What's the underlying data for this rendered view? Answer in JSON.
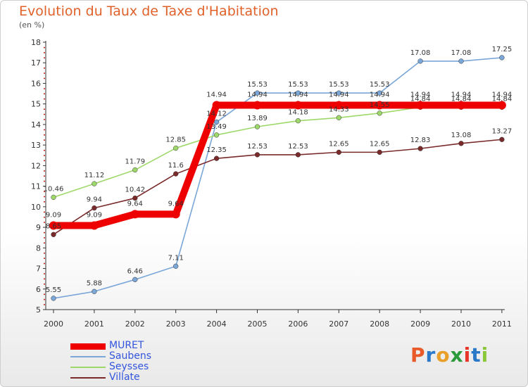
{
  "title": "Evolution du Taux de Taxe d'Habitation",
  "subtitle": "(en %)",
  "logo": {
    "text": "Proxiti",
    "colors": [
      "#e85a2a",
      "#2a78c8",
      "#e8a02a",
      "#2a9a3a",
      "#e8342a",
      "#2a78c8",
      "#8ac83a"
    ]
  },
  "chart_data": {
    "type": "line",
    "x": [
      "2000",
      "2001",
      "2002",
      "2003",
      "2004",
      "2005",
      "2006",
      "2007",
      "2008",
      "2009",
      "2010",
      "2011"
    ],
    "yticks": [
      "5",
      "6",
      "7",
      "8",
      "9",
      "10",
      "11",
      "12",
      "13",
      "14",
      "15",
      "16",
      "17",
      "18"
    ],
    "ylim": [
      5,
      18
    ],
    "grid": false,
    "legend_position": "bottom-left",
    "series": [
      {
        "name": "MURET",
        "color": "#ee0000",
        "values": [
          9.09,
          9.09,
          9.64,
          9.64,
          14.94,
          14.94,
          14.94,
          14.94,
          14.94,
          14.94,
          14.94,
          14.94
        ],
        "labels": [
          "9.09",
          "9.09",
          "9.64",
          "9.64",
          "14.94",
          "14.94",
          "14.94",
          "14.94",
          "14.94",
          "14.94",
          "14.94",
          "14.94"
        ]
      },
      {
        "name": "Saubens",
        "color": "#7aa6d8",
        "values": [
          5.55,
          5.88,
          6.46,
          7.11,
          14.12,
          15.53,
          15.53,
          15.53,
          15.53,
          17.08,
          17.08,
          17.25
        ],
        "labels": [
          "5.55",
          "5.88",
          "6.46",
          "7.11",
          "14.12",
          "15.53",
          "15.53",
          "15.53",
          "15.53",
          "17.08",
          "17.08",
          "17.25"
        ]
      },
      {
        "name": "Seysses",
        "color": "#9ed86a",
        "values": [
          10.46,
          11.12,
          11.79,
          12.85,
          13.49,
          13.89,
          14.18,
          14.33,
          14.55,
          14.84,
          14.84,
          14.84
        ],
        "labels": [
          "10.46",
          "11.12",
          "11.79",
          "12.85",
          "13.49",
          "13.89",
          "14.18",
          "14.33",
          "14.55",
          "14.84",
          "14.84",
          "14.84"
        ]
      },
      {
        "name": "Villate",
        "color": "#7a2a2a",
        "values": [
          8.65,
          9.94,
          10.42,
          11.6,
          12.35,
          12.53,
          12.53,
          12.65,
          12.65,
          12.83,
          13.08,
          13.27
        ],
        "labels": [
          "8.65",
          "9.94",
          "10.42",
          "11.6",
          "12.35",
          "12.53",
          "12.53",
          "12.65",
          "12.65",
          "12.83",
          "13.08",
          "13.27"
        ]
      }
    ]
  }
}
